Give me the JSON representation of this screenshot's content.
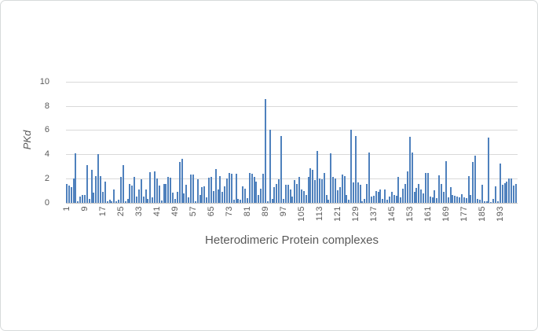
{
  "chart_data": {
    "type": "bar",
    "title": "",
    "xlabel": "Heterodimeric Protein complexes",
    "ylabel": "PKd",
    "ylim": [
      0,
      10
    ],
    "yticks": [
      0,
      2,
      4,
      6,
      8,
      10
    ],
    "xticks": [
      1,
      9,
      17,
      25,
      33,
      41,
      49,
      57,
      65,
      73,
      81,
      89,
      97,
      105,
      113,
      121,
      129,
      137,
      145,
      153,
      161,
      169,
      177,
      185,
      193
    ],
    "grid": true,
    "legend": "none",
    "values": [
      1.5,
      1.4,
      1.3,
      2.0,
      4.1,
      0.1,
      0.5,
      0.6,
      0.6,
      3.1,
      0.3,
      2.7,
      0.8,
      2.2,
      4.0,
      2.2,
      0.9,
      1.7,
      0.1,
      0.2,
      0.1,
      1.1,
      0.1,
      0.2,
      2.1,
      3.1,
      0.1,
      0.3,
      1.5,
      1.4,
      2.1,
      0.5,
      1.1,
      1.9,
      0.5,
      1.1,
      0.3,
      2.5,
      0.4,
      2.55,
      2.0,
      1.4,
      0.15,
      1.5,
      1.55,
      2.1,
      2.05,
      0.8,
      0.3,
      0.9,
      3.35,
      3.6,
      0.75,
      1.45,
      0.4,
      2.3,
      2.3,
      0.1,
      1.95,
      0.6,
      1.3,
      1.35,
      0.4,
      2.05,
      2.1,
      0.95,
      2.75,
      1.05,
      2.2,
      0.85,
      1.35,
      2.0,
      2.45,
      2.35,
      0.2,
      2.35,
      0.3,
      0.25,
      1.35,
      1.15,
      0.35,
      2.45,
      2.4,
      2.15,
      1.7,
      0.6,
      1.15,
      2.35,
      8.6,
      0.1,
      6.0,
      0.3,
      1.25,
      1.55,
      1.95,
      5.5,
      0.3,
      1.45,
      1.45,
      1.05,
      0.5,
      1.85,
      1.55,
      2.1,
      1.05,
      0.95,
      0.6,
      2.15,
      2.85,
      2.7,
      1.85,
      4.25,
      2.0,
      1.9,
      2.45,
      0.6,
      0.25,
      4.05,
      2.1,
      2.0,
      1.0,
      1.25,
      2.3,
      2.2,
      0.6,
      0.2,
      6.0,
      1.65,
      5.5,
      1.65,
      1.45,
      0.1,
      0.3,
      1.55,
      4.15,
      0.5,
      0.55,
      0.95,
      0.85,
      1.05,
      0.3,
      1.05,
      0.2,
      0.5,
      0.9,
      0.65,
      0.55,
      2.15,
      0.4,
      1.15,
      1.5,
      2.6,
      5.45,
      4.15,
      0.9,
      1.2,
      1.55,
      1.1,
      0.75,
      2.45,
      2.45,
      0.5,
      0.4,
      1.0,
      0.35,
      2.25,
      1.5,
      0.85,
      3.4,
      0.45,
      1.25,
      0.6,
      0.55,
      0.5,
      0.4,
      0.7,
      0.45,
      0.35,
      2.2,
      0.6,
      3.35,
      3.9,
      0.3,
      0.2,
      1.45,
      0.1,
      0.1,
      5.4,
      0.05,
      0.3,
      1.35,
      0.1,
      3.2,
      1.45,
      1.6,
      1.75,
      2.0,
      2.0,
      1.4,
      1.5
    ],
    "colors": {
      "bar": "#4f81bd",
      "grid": "#d9d9d9",
      "axis": "#c3c3c3",
      "text": "#595959",
      "border": "#d7dadb"
    }
  }
}
